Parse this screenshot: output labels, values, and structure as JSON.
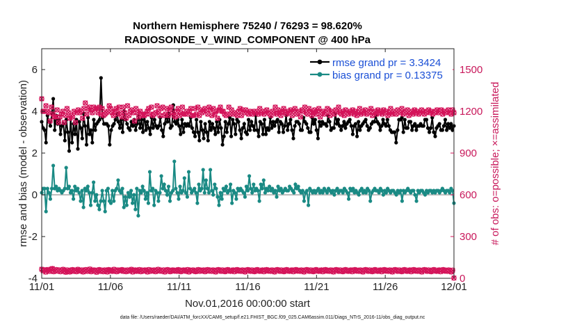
{
  "chart_data": {
    "type": "line",
    "title": "Northern Hemisphere 75240 / 76293 = 98.620%",
    "subtitle": "RADIOSONDE_V_WIND_COMPONENT @ 400 hPa",
    "xlabel": "Nov.01,2016 00:00:00 start",
    "ylabel": "rmse and bias (model - observation)",
    "y2label": "# of obs: o=possible; ×=assimilated",
    "footer": "data file: /Users/raeder/DAI/ATM_forcXX/CAM6_setup/f.e21.FHIST_BGC.f09_025.CAM6assim.011/Diags_NTrS_2016-11/obs_diag_output.nc",
    "xlim": [
      0,
      30
    ],
    "ylim": [
      -4,
      7
    ],
    "y2lim": [
      0,
      1650
    ],
    "xticks": [
      0,
      5,
      10,
      15,
      20,
      25,
      30
    ],
    "xtick_labels": [
      "11/01",
      "11/06",
      "11/11",
      "11/16",
      "11/21",
      "11/26",
      "12/01"
    ],
    "yticks": [
      -4,
      -2,
      0,
      2,
      4,
      6
    ],
    "ytick_labels": [
      "-4",
      "-2",
      "0",
      "2",
      "4",
      "6"
    ],
    "y2ticks": [
      0,
      300,
      600,
      900,
      1200,
      1500
    ],
    "y2tick_labels": [
      "0",
      "300",
      "600",
      "900",
      "1200",
      "1500"
    ],
    "colors": {
      "rmse": "#000000",
      "bias": "#1a8a84",
      "obs": "#d4145a",
      "zero_line": "#bdbdbd",
      "legend_text": "#1a4fd6"
    },
    "legend": {
      "position": "top-right",
      "entries": [
        "rmse grand pr = 3.3424",
        "bias grand pr = 0.13375"
      ]
    },
    "series": [
      {
        "name": "rmse",
        "axis": "left",
        "values": [
          3.5,
          3.2,
          3.1,
          2.5,
          3.8,
          3.5,
          3.3,
          3.9,
          4.6,
          3.1,
          3.8,
          3.4,
          3.6,
          2.9,
          3.3,
          3.4,
          2.6,
          3.6,
          3.0,
          2.1,
          3.7,
          2.5,
          3.4,
          2.9,
          3.6,
          2.2,
          3.5,
          3.2,
          2.7,
          3.9,
          3.3,
          2.4,
          3.7,
          2.9,
          3.1,
          2.5,
          3.6,
          3.1,
          3.4,
          3.5,
          3.6,
          5.6,
          3.7,
          3.4,
          3.4,
          3.4,
          3.3,
          2.4,
          3.1,
          3.3,
          3.4,
          3.6,
          3.9,
          3.5,
          3.2,
          3.6,
          3.0,
          4.0,
          3.6,
          3.4,
          3.2,
          3.1,
          3.5,
          3.3,
          3.6,
          3.1,
          3.4,
          3.8,
          3.2,
          3.6,
          3.0,
          3.9,
          3.1,
          3.5,
          3.2,
          2.9,
          3.7,
          3.2,
          3.6,
          3.3,
          3.2,
          3.3,
          3.7,
          3.1,
          2.8,
          3.4,
          3.8,
          3.5,
          3.9,
          3.2,
          3.3,
          4.3,
          3.5,
          3.4,
          3.6,
          3.3,
          2.9,
          3.6,
          3.0,
          3.4,
          3.3,
          3.4,
          3.3,
          3.7,
          3.2,
          3.0,
          2.8,
          3.6,
          3.0,
          2.6,
          3.5,
          3.1,
          2.7,
          3.4,
          3.0,
          2.6,
          3.5,
          3.1,
          3.4,
          3.2,
          2.9,
          3.5,
          3.0,
          3.6,
          3.2,
          2.4,
          2.8,
          3.5,
          3.0,
          3.4,
          3.7,
          2.8,
          3.6,
          3.4,
          2.9,
          3.6,
          3.5,
          3.1,
          2.7,
          3.2,
          3.4,
          3.0,
          2.9,
          3.6,
          3.1,
          3.5,
          3.3,
          3.1,
          3.8,
          3.1,
          2.8,
          3.5,
          3.4,
          2.9,
          3.6,
          2.9,
          3.2,
          3.1,
          3.7,
          3.2,
          3.5,
          3.3,
          3.5,
          3.6,
          3.0,
          3.5,
          3.4,
          3.0,
          3.3,
          3.8,
          3.1,
          3.4,
          3.6,
          3.1,
          2.7,
          3.3,
          3.5,
          3.5,
          3.4,
          3.1,
          3.1,
          3.7,
          3.5,
          3.4,
          3.2,
          3.0,
          3.0,
          3.7,
          3.4,
          3.6,
          3.1,
          2.7,
          3.5,
          3.3,
          3.5,
          3.4,
          3.4,
          3.3,
          3.8,
          3.5,
          3.1,
          3.2,
          3.2,
          3.9,
          3.4,
          3.6,
          3.3,
          3.1,
          3.3,
          3.5,
          3.2,
          3.4,
          3.5,
          3.6,
          3.3,
          2.9,
          3.3,
          3.4,
          2.8,
          3.5,
          3.1,
          3.3,
          3.4,
          3.5,
          3.6,
          3.3,
          3.1,
          3.2,
          3.4,
          3.5,
          3.5,
          3.8,
          3.5,
          3.4,
          3.1,
          3.3,
          3.6,
          3.4,
          3.3,
          3.6,
          3.3,
          3.1,
          3.0,
          3.0,
          3.0,
          2.5,
          3.1,
          3.6,
          3.6,
          3.7,
          3.0,
          3.6,
          3.2,
          3.2,
          3.5,
          3.5,
          3.1,
          3.3,
          3.4,
          3.1,
          3.3,
          3.3,
          3.4,
          3.3,
          3.3,
          3.6,
          3.6,
          3.2,
          3.0,
          3.2,
          3.7,
          3.0,
          2.8,
          3.2,
          3.3,
          3.4,
          3.1,
          3.1,
          3.3,
          3.6,
          3.1,
          3.4,
          3.2,
          3.4,
          3.1,
          3.3
        ]
      },
      {
        "name": "bias",
        "axis": "left",
        "values": [
          0.1,
          0.3,
          0.3,
          -0.8,
          0.3,
          0.1,
          -0.2,
          0.3,
          1.4,
          0.3,
          0.4,
          0.2,
          0.3,
          0.2,
          0.1,
          0.2,
          0.3,
          1.3,
          0.3,
          0.4,
          0.1,
          0.2,
          -0.2,
          0.4,
          0.2,
          0.3,
          0.1,
          -0.3,
          0.2,
          -0.6,
          0.3,
          0.2,
          0.4,
          0.1,
          -0.5,
          0.1,
          0.6,
          -0.3,
          0.0,
          -0.5,
          -0.7,
          -0.3,
          0.2,
          -0.3,
          -0.8,
          0.2,
          0.3,
          -0.3,
          -0.4,
          0.2,
          -0.3,
          0.2,
          0.3,
          0.7,
          0.2,
          0.1,
          0.3,
          -0.6,
          -0.1,
          -0.5,
          0.1,
          -0.1,
          0.2,
          -0.4,
          0.0,
          -0.7,
          0.3,
          -1.0,
          0.2,
          0.1,
          0.4,
          0.2,
          -0.2,
          0.1,
          -0.4,
          1.1,
          0.2,
          0.3,
          -0.5,
          0.2,
          0.1,
          -0.3,
          0.1,
          0.9,
          0.3,
          0.5,
          0.2,
          0.0,
          0.4,
          -0.3,
          0.1,
          0.2,
          1.6,
          0.3,
          0.1,
          -0.2,
          0.4,
          0.1,
          0.2,
          0.8,
          0.1,
          -0.1,
          1.1,
          0.3,
          0.1,
          0.2,
          0.3,
          0.1,
          -0.4,
          0.5,
          0.2,
          0.3,
          1.2,
          0.1,
          0.7,
          0.3,
          0.1,
          1.2,
          0.2,
          0.0,
          0.5,
          0.3,
          -0.1,
          -0.5,
          0.1,
          -0.2,
          0.3,
          0.2,
          0.4,
          0.1,
          0.2,
          0.5,
          -0.4,
          0.2,
          0.1,
          -0.2,
          0.3,
          0.2,
          0.3,
          0.2,
          0.1,
          -0.1,
          0.4,
          0.2,
          0.9,
          0.3,
          0.1,
          0.5,
          0.2,
          0.3,
          0.2,
          -0.3,
          0.5,
          0.3,
          0.7,
          0.1,
          0.3,
          0.2,
          0.4,
          0.2,
          0.3,
          0.1,
          0.2,
          -0.1,
          0.4,
          0.2,
          0.3,
          0.1,
          0.2,
          0.3,
          0.2,
          0.2,
          0.4,
          0.3,
          0.2,
          0.1,
          0.5,
          0.3,
          0.4,
          0.2,
          0.1,
          0.2,
          -0.3,
          0.1,
          0.2,
          -0.5,
          0.3,
          0.2,
          0.1,
          0.2,
          0.1,
          0.2,
          0.3,
          0.1,
          0.2,
          0.1,
          0.3,
          0.2,
          0.1,
          0.3,
          0.2,
          0.1,
          0.2,
          0.0,
          0.2,
          0.3,
          0.1,
          0.2,
          0.2,
          0.1,
          0.3,
          0.2,
          0.1,
          -0.2,
          0.3,
          0.2,
          0.3,
          0.1,
          0.2,
          0.1,
          0.0,
          0.2,
          0.3,
          0.1,
          0.2,
          0.1,
          0.3,
          0.2,
          -0.3,
          0.1,
          0.2,
          0.3,
          0.2,
          0.2,
          0.1,
          0.3,
          0.2,
          0.0,
          0.2,
          0.1,
          0.3,
          0.2,
          0.1,
          0.2,
          0.2,
          0.1,
          0.0,
          0.2,
          0.1,
          0.2,
          -0.3,
          0.2,
          0.1,
          0.2,
          0.3,
          0.2,
          0.1,
          0.2,
          0.2,
          0.0,
          -0.3,
          0.2,
          0.1,
          0.2,
          0.2,
          0.1,
          0.0,
          0.2,
          0.1,
          0.2,
          0.2,
          0.1,
          0.2,
          0.1,
          0.2,
          0.2,
          0.1,
          0.2,
          0.3,
          0.2,
          0.1,
          0.2,
          0.2,
          0.1,
          0.3,
          0.2,
          -0.4
        ]
      },
      {
        "name": "obs possible",
        "axis": "right",
        "values": [
          1290,
          1200,
          1200,
          1240,
          1200,
          1190,
          1130,
          1230,
          1180,
          1160,
          1160,
          1210,
          1120,
          1160,
          1180,
          1200,
          1120,
          1170,
          1220,
          1190,
          1150,
          1170,
          1160,
          1200,
          1120,
          1190,
          1210,
          1190,
          1200,
          1150,
          1220,
          1260,
          1180,
          1220,
          1230,
          1210,
          1190,
          1230,
          1220,
          1220,
          1190,
          1230,
          1180,
          1220,
          1170,
          1180,
          1190,
          1200,
          1240,
          1220,
          1190,
          1170,
          1200,
          1220,
          1180,
          1230,
          1190,
          1160,
          1230,
          1190,
          1150,
          1240,
          1170,
          1200,
          1210,
          1190,
          1130,
          1220,
          1190,
          1160,
          1200,
          1180,
          1170,
          1170,
          1180,
          1200,
          1220,
          1180,
          1230,
          1170,
          1180,
          1190,
          1240,
          1200,
          1170,
          1220,
          1230,
          1170,
          1180,
          1220,
          1170,
          1210,
          1230,
          1190,
          1170,
          1160,
          1200,
          1220,
          1170,
          1190,
          1230,
          1180,
          1180,
          1200,
          1180,
          1200,
          1220,
          1170,
          1170,
          1220,
          1180,
          1230,
          1170,
          1210,
          1190,
          1200,
          1220,
          1210,
          1180,
          1230,
          1210,
          1170,
          1220,
          1180,
          1200,
          1150,
          1210,
          1230,
          1200,
          1200,
          1180,
          1170,
          1180,
          1230,
          1180,
          1210,
          1180,
          1190,
          1180,
          1170,
          1200,
          1220,
          1170,
          1210,
          1190,
          1210,
          1190,
          1180,
          1200,
          1190,
          1180,
          1200,
          1190,
          1200,
          1180,
          1220,
          1190,
          1200,
          1180,
          1200,
          1210,
          1190,
          1180,
          1170,
          1200,
          1190,
          1230,
          1180,
          1210,
          1190,
          1170,
          1200,
          1220,
          1190,
          1180,
          1200,
          1190,
          1210,
          1170,
          1200,
          1220,
          1180,
          1190,
          1200,
          1160,
          1210,
          1200,
          1230,
          1190,
          1180,
          1220,
          1200,
          1170,
          1190,
          1210,
          1180,
          1200,
          1220,
          1160,
          1190,
          1200,
          1180,
          1190,
          1220,
          1210,
          1170,
          1200,
          1190,
          1180,
          1210,
          1200,
          1230,
          1190,
          1180,
          1200,
          1170,
          1210,
          1190,
          1180,
          1200,
          1190,
          1210,
          1180,
          1200,
          1170,
          1190,
          1220,
          1180,
          1200,
          1190,
          1210,
          1180,
          1190,
          1200,
          1220,
          1170,
          1190,
          1200,
          1180,
          1210,
          1190,
          1200,
          1180,
          1210,
          1190,
          1200,
          1170,
          1190,
          1220,
          1180,
          1200,
          1190,
          1180,
          1210,
          1200,
          1190,
          1220,
          1180,
          1190,
          1200,
          1210,
          1170,
          1190,
          1200,
          1180,
          1210,
          1190,
          1200,
          1180,
          1190,
          1210,
          1200,
          1180,
          1190,
          1200,
          1210,
          1190,
          1200,
          1180,
          1190,
          1200,
          1210,
          1190,
          1200,
          1210,
          1180,
          1200,
          1190,
          1200,
          1210,
          1190,
          1180,
          1210,
          1190
        ]
      },
      {
        "name": "obs assimilated",
        "axis": "right",
        "values": [
          65,
          55,
          60,
          45,
          62,
          58,
          50,
          66,
          70,
          48,
          55,
          62,
          52,
          60,
          48,
          58,
          64,
          50,
          44,
          60,
          52,
          46,
          58,
          62,
          50,
          56,
          48,
          64,
          58,
          52,
          60,
          46,
          54,
          62,
          50,
          58,
          66,
          48,
          56,
          60,
          52,
          44,
          58,
          62,
          50,
          56,
          48,
          60,
          54,
          46,
          62,
          58,
          52,
          50,
          64,
          56,
          48,
          60,
          54,
          58,
          62,
          50,
          56,
          48,
          60,
          52,
          58,
          64,
          46,
          56,
          60,
          50,
          54,
          62,
          48,
          58,
          52,
          60,
          56,
          46,
          62,
          50,
          58,
          54,
          60,
          48,
          56,
          64,
          52,
          58,
          50,
          60,
          46,
          56,
          62,
          54,
          48,
          58,
          60,
          52,
          56,
          50,
          62,
          58,
          48,
          54,
          60,
          56,
          50,
          62,
          46,
          58,
          54,
          60,
          52,
          48,
          56,
          62,
          50,
          58,
          54,
          60,
          48,
          56,
          62,
          52,
          58,
          50,
          60,
          54,
          46,
          58,
          62,
          56,
          50,
          60,
          52,
          48,
          58,
          62,
          54,
          50,
          56,
          60,
          48,
          58,
          62,
          52,
          56,
          50,
          60,
          54,
          46,
          58,
          62,
          56,
          50,
          60,
          52,
          48,
          58,
          62,
          54,
          50,
          56,
          60,
          48,
          58,
          62,
          52,
          56,
          50,
          60,
          54,
          46,
          58,
          62,
          56,
          50,
          60,
          52,
          48,
          58,
          62,
          54,
          50,
          56,
          60,
          48,
          58,
          62,
          52,
          56,
          50,
          60,
          54,
          46,
          58,
          62,
          56,
          50,
          60,
          52,
          48,
          58,
          62,
          54,
          50,
          56,
          60,
          48,
          58,
          62,
          52,
          56,
          50,
          60,
          54,
          46,
          58,
          62,
          56,
          50,
          60,
          52,
          48,
          58,
          62,
          54,
          50,
          56,
          60,
          48,
          58,
          62,
          52,
          56,
          50,
          60,
          54,
          46,
          58,
          62,
          56,
          50,
          60,
          52,
          48,
          58,
          62,
          54,
          50,
          56,
          60,
          48,
          58,
          62,
          52,
          56,
          50,
          60,
          54,
          46,
          58,
          62,
          56,
          50,
          60,
          52,
          48,
          58,
          62,
          54,
          50,
          56,
          60,
          48,
          58,
          62,
          52,
          56,
          50,
          60,
          54,
          46,
          58,
          62,
          56,
          50,
          60,
          52,
          48,
          58,
          62,
          54,
          50,
          56,
          60,
          48,
          58,
          62,
          52,
          56,
          50,
          60,
          54,
          46,
          58,
          2
        ]
      }
    ]
  }
}
